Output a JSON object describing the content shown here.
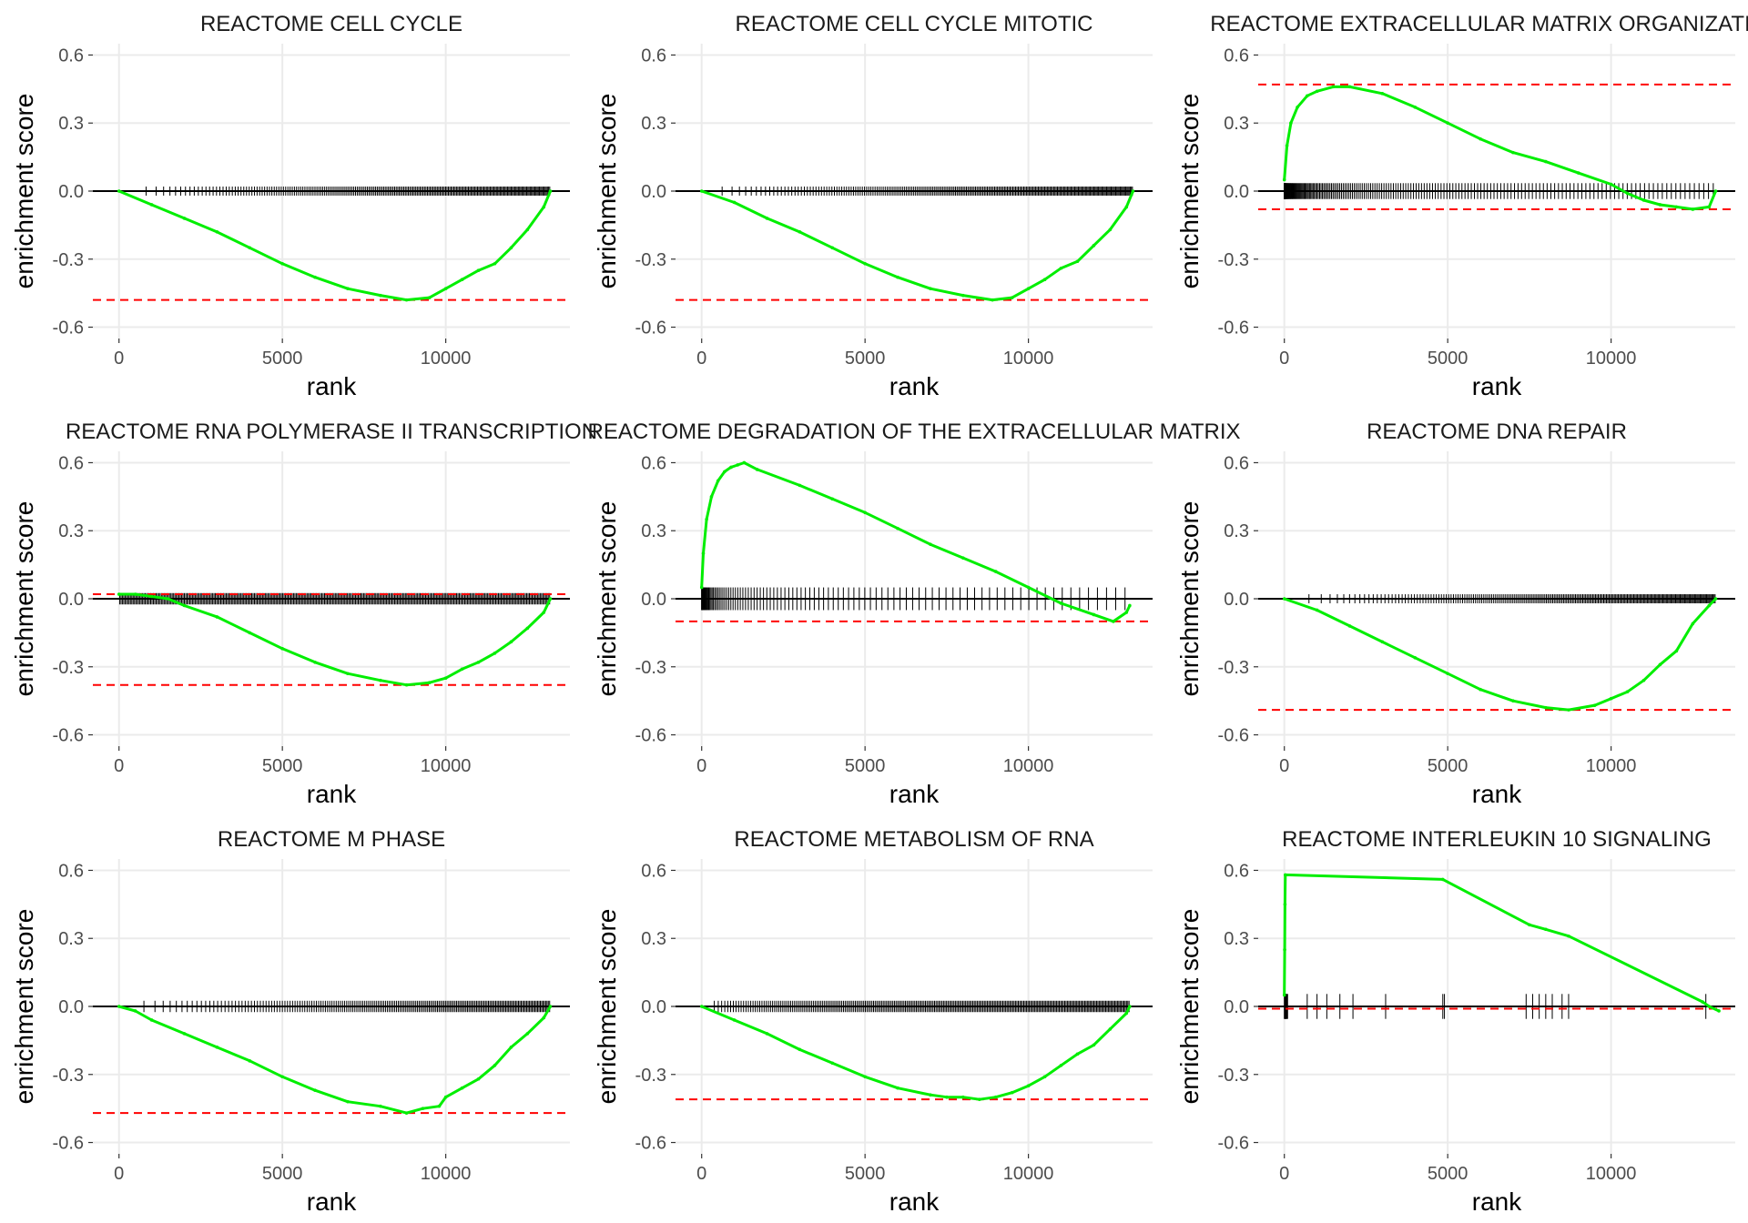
{
  "colors": {
    "curve": "#00ee00",
    "hits": "#000000",
    "es_line": "#ff0000",
    "grid": "#ebebeb"
  },
  "chart_data": [
    {
      "type": "line",
      "title": "REACTOME CELL CYCLE",
      "xlabel": "rank",
      "ylabel": "enrichment score",
      "xlim": [
        -800,
        13800
      ],
      "ylim": [
        -0.65,
        0.65
      ],
      "xticks": [
        0,
        5000,
        10000
      ],
      "xtick_labels": [
        "0",
        "5000",
        "10000"
      ],
      "yticks": [
        0.6,
        0.3,
        0,
        -0.3,
        -0.6
      ],
      "ytick_labels": [
        "0.6",
        "0.3",
        "0.0",
        "-0.3",
        "-0.6"
      ],
      "grid": true,
      "es_lines": [
        -0.48
      ],
      "series": [
        {
          "x": [
            0,
            1000,
            2000,
            3000,
            4000,
            5000,
            6000,
            7000,
            8000,
            8800,
            9500,
            10000,
            10500,
            11000,
            11500,
            12000,
            12500,
            13000,
            13200
          ],
          "y": [
            0,
            -0.06,
            -0.12,
            -0.18,
            -0.25,
            -0.32,
            -0.38,
            -0.43,
            -0.46,
            -0.48,
            -0.47,
            -0.43,
            -0.39,
            -0.35,
            -0.32,
            -0.25,
            -0.17,
            -0.07,
            0
          ]
        }
      ],
      "hits": {
        "start": 500,
        "end": 13200,
        "count": 220,
        "power": 0.6,
        "top": 0.02,
        "bottom": -0.02
      }
    },
    {
      "type": "line",
      "title": "REACTOME CELL CYCLE MITOTIC",
      "xlabel": "rank",
      "ylabel": "enrichment score",
      "xlim": [
        -800,
        13800
      ],
      "ylim": [
        -0.65,
        0.65
      ],
      "xticks": [
        0,
        5000,
        10000
      ],
      "xtick_labels": [
        "0",
        "5000",
        "10000"
      ],
      "yticks": [
        0.6,
        0.3,
        0,
        -0.3,
        -0.6
      ],
      "ytick_labels": [
        "0.6",
        "0.3",
        "0.0",
        "-0.3",
        "-0.6"
      ],
      "grid": true,
      "es_lines": [
        -0.48
      ],
      "series": [
        {
          "x": [
            0,
            1000,
            2000,
            3000,
            4000,
            5000,
            6000,
            7000,
            8000,
            8900,
            9500,
            10000,
            10500,
            11000,
            11500,
            12000,
            12500,
            13000,
            13200
          ],
          "y": [
            0,
            -0.05,
            -0.12,
            -0.18,
            -0.25,
            -0.32,
            -0.38,
            -0.43,
            -0.46,
            -0.48,
            -0.47,
            -0.43,
            -0.39,
            -0.34,
            -0.31,
            -0.24,
            -0.17,
            -0.07,
            0
          ]
        }
      ],
      "hits": {
        "start": 300,
        "end": 13200,
        "count": 230,
        "power": 0.6,
        "top": 0.02,
        "bottom": -0.02
      }
    },
    {
      "type": "line",
      "title": "REACTOME EXTRACELLULAR MATRIX ORGANIZATION",
      "xlabel": "rank",
      "ylabel": "enrichment score",
      "xlim": [
        -800,
        13800
      ],
      "ylim": [
        -0.65,
        0.65
      ],
      "xticks": [
        0,
        5000,
        10000
      ],
      "xtick_labels": [
        "0",
        "5000",
        "10000"
      ],
      "yticks": [
        0.6,
        0.3,
        0,
        -0.3,
        -0.6
      ],
      "ytick_labels": [
        "0.6",
        "0.3",
        "0.0",
        "-0.3",
        "-0.6"
      ],
      "grid": true,
      "es_lines": [
        0.47,
        -0.08
      ],
      "series": [
        {
          "x": [
            0,
            80,
            200,
            400,
            700,
            1000,
            1500,
            2000,
            3000,
            4000,
            5000,
            6000,
            7000,
            8000,
            9000,
            10000,
            10500,
            11000,
            11500,
            12000,
            12500,
            13000,
            13200
          ],
          "y": [
            0.05,
            0.2,
            0.3,
            0.37,
            0.42,
            0.44,
            0.46,
            0.46,
            0.43,
            0.37,
            0.3,
            0.23,
            0.17,
            0.13,
            0.08,
            0.03,
            -0.01,
            -0.04,
            -0.06,
            -0.07,
            -0.08,
            -0.07,
            0
          ]
        }
      ],
      "hits": {
        "start": 0,
        "end": 13200,
        "count": 180,
        "power": 2.0,
        "top": 0.035,
        "bottom": -0.035
      }
    },
    {
      "type": "line",
      "title": "REACTOME RNA POLYMERASE II TRANSCRIPTION",
      "xlabel": "rank",
      "ylabel": "enrichment score",
      "xlim": [
        -800,
        13800
      ],
      "ylim": [
        -0.65,
        0.65
      ],
      "xticks": [
        0,
        5000,
        10000
      ],
      "xtick_labels": [
        "0",
        "5000",
        "10000"
      ],
      "yticks": [
        0.6,
        0.3,
        0,
        -0.3,
        -0.6
      ],
      "ytick_labels": [
        "0.6",
        "0.3",
        "0.0",
        "-0.3",
        "-0.6"
      ],
      "grid": true,
      "es_lines": [
        0.02,
        -0.38
      ],
      "series": [
        {
          "x": [
            0,
            500,
            1000,
            1500,
            2000,
            3000,
            4000,
            5000,
            6000,
            7000,
            8000,
            8800,
            9500,
            10000,
            10500,
            11000,
            11500,
            12000,
            12500,
            13000,
            13200
          ],
          "y": [
            0.02,
            0.02,
            0.01,
            0,
            -0.03,
            -0.08,
            -0.15,
            -0.22,
            -0.28,
            -0.33,
            -0.36,
            -0.38,
            -0.37,
            -0.35,
            -0.31,
            -0.28,
            -0.24,
            -0.19,
            -0.13,
            -0.06,
            0
          ]
        }
      ],
      "hits": {
        "start": 0,
        "end": 13200,
        "count": 320,
        "power": 1.0,
        "top": 0.025,
        "bottom": -0.025
      }
    },
    {
      "type": "line",
      "title": "REACTOME DEGRADATION OF THE EXTRACELLULAR MATRIX",
      "xlabel": "rank",
      "ylabel": "enrichment score",
      "xlim": [
        -800,
        13800
      ],
      "ylim": [
        -0.65,
        0.65
      ],
      "xticks": [
        0,
        5000,
        10000
      ],
      "xtick_labels": [
        "0",
        "5000",
        "10000"
      ],
      "yticks": [
        0.6,
        0.3,
        0,
        -0.3,
        -0.6
      ],
      "ytick_labels": [
        "0.6",
        "0.3",
        "0.0",
        "-0.3",
        "-0.6"
      ],
      "grid": true,
      "es_lines": [
        -0.1
      ],
      "series": [
        {
          "x": [
            0,
            50,
            150,
            300,
            500,
            700,
            900,
            1100,
            1300,
            1700,
            3000,
            4000,
            5000,
            6000,
            7000,
            8000,
            9000,
            10000,
            11000,
            12000,
            12600,
            13000,
            13100
          ],
          "y": [
            0.05,
            0.2,
            0.35,
            0.45,
            0.52,
            0.56,
            0.58,
            0.59,
            0.6,
            0.57,
            0.5,
            0.44,
            0.38,
            0.31,
            0.24,
            0.18,
            0.12,
            0.05,
            -0.02,
            -0.07,
            -0.1,
            -0.06,
            -0.03
          ]
        }
      ],
      "hits": {
        "start": 0,
        "end": 13100,
        "count": 100,
        "power": 2.2,
        "top": 0.05,
        "bottom": -0.05
      }
    },
    {
      "type": "line",
      "title": "REACTOME DNA REPAIR",
      "xlabel": "rank",
      "ylabel": "enrichment score",
      "xlim": [
        -800,
        13800
      ],
      "ylim": [
        -0.65,
        0.65
      ],
      "xticks": [
        0,
        5000,
        10000
      ],
      "xtick_labels": [
        "0",
        "5000",
        "10000"
      ],
      "yticks": [
        0.6,
        0.3,
        0,
        -0.3,
        -0.6
      ],
      "ytick_labels": [
        "0.6",
        "0.3",
        "0.0",
        "-0.3",
        "-0.6"
      ],
      "grid": true,
      "es_lines": [
        -0.49
      ],
      "series": [
        {
          "x": [
            0,
            1000,
            2000,
            3000,
            4000,
            5000,
            6000,
            7000,
            8000,
            8700,
            9500,
            10000,
            10500,
            11000,
            11500,
            12000,
            12500,
            13000,
            13200
          ],
          "y": [
            0,
            -0.05,
            -0.12,
            -0.19,
            -0.26,
            -0.33,
            -0.4,
            -0.45,
            -0.48,
            -0.49,
            -0.47,
            -0.44,
            -0.41,
            -0.36,
            -0.29,
            -0.23,
            -0.11,
            -0.03,
            0
          ]
        }
      ],
      "hits": {
        "start": 300,
        "end": 13200,
        "count": 220,
        "power": 0.55,
        "top": 0.02,
        "bottom": -0.02
      }
    },
    {
      "type": "line",
      "title": "REACTOME M PHASE",
      "xlabel": "rank",
      "ylabel": "enrichment score",
      "xlim": [
        -800,
        13800
      ],
      "ylim": [
        -0.65,
        0.65
      ],
      "xticks": [
        0,
        5000,
        10000
      ],
      "xtick_labels": [
        "0",
        "5000",
        "10000"
      ],
      "yticks": [
        0.6,
        0.3,
        0,
        -0.3,
        -0.6
      ],
      "ytick_labels": [
        "0.6",
        "0.3",
        "0.0",
        "-0.3",
        "-0.6"
      ],
      "grid": true,
      "es_lines": [
        -0.47
      ],
      "series": [
        {
          "x": [
            0,
            500,
            1000,
            2000,
            3000,
            4000,
            5000,
            6000,
            7000,
            8000,
            8800,
            9300,
            9800,
            10000,
            10500,
            11000,
            11500,
            12000,
            12500,
            13000,
            13200
          ],
          "y": [
            0,
            -0.02,
            -0.06,
            -0.12,
            -0.18,
            -0.24,
            -0.31,
            -0.37,
            -0.42,
            -0.44,
            -0.47,
            -0.45,
            -0.44,
            -0.4,
            -0.36,
            -0.32,
            -0.26,
            -0.18,
            -0.12,
            -0.05,
            0
          ]
        }
      ],
      "hits": {
        "start": 400,
        "end": 13200,
        "count": 190,
        "power": 0.6,
        "top": 0.025,
        "bottom": -0.025
      }
    },
    {
      "type": "line",
      "title": "REACTOME METABOLISM OF RNA",
      "xlabel": "rank",
      "ylabel": "enrichment score",
      "xlim": [
        -800,
        13800
      ],
      "ylim": [
        -0.65,
        0.65
      ],
      "xticks": [
        0,
        5000,
        10000
      ],
      "xtick_labels": [
        "0",
        "5000",
        "10000"
      ],
      "yticks": [
        0.6,
        0.3,
        0,
        -0.3,
        -0.6
      ],
      "ytick_labels": [
        "0.6",
        "0.3",
        "0.0",
        "-0.3",
        "-0.6"
      ],
      "grid": true,
      "es_lines": [
        -0.41
      ],
      "series": [
        {
          "x": [
            0,
            1000,
            2000,
            3000,
            4000,
            5000,
            6000,
            7000,
            7500,
            8000,
            8500,
            9000,
            9500,
            10000,
            10500,
            11000,
            11500,
            12000,
            12500,
            13000,
            13100
          ],
          "y": [
            0,
            -0.06,
            -0.12,
            -0.19,
            -0.25,
            -0.31,
            -0.36,
            -0.39,
            -0.4,
            -0.4,
            -0.41,
            -0.4,
            -0.38,
            -0.35,
            -0.31,
            -0.26,
            -0.21,
            -0.17,
            -0.1,
            -0.03,
            0
          ]
        }
      ],
      "hits": {
        "start": 300,
        "end": 13100,
        "count": 260,
        "power": 0.8,
        "top": 0.025,
        "bottom": -0.025
      }
    },
    {
      "type": "line",
      "title": "REACTOME INTERLEUKIN 10 SIGNALING",
      "xlabel": "rank",
      "ylabel": "enrichment score",
      "xlim": [
        -800,
        13800
      ],
      "ylim": [
        -0.65,
        0.65
      ],
      "xticks": [
        0,
        5000,
        10000
      ],
      "xtick_labels": [
        "0",
        "5000",
        "10000"
      ],
      "yticks": [
        0.6,
        0.3,
        0,
        -0.3,
        -0.6
      ],
      "ytick_labels": [
        "0.6",
        "0.3",
        "0.0",
        "-0.3",
        "-0.6"
      ],
      "grid": true,
      "es_lines": [
        -0.01
      ],
      "series": [
        {
          "x": [
            0,
            10,
            20,
            30,
            4850,
            7500,
            8000,
            8700,
            12800,
            13000,
            13300
          ],
          "y": [
            0.05,
            0.25,
            0.45,
            0.58,
            0.56,
            0.36,
            0.34,
            0.31,
            0.02,
            0,
            -0.02
          ]
        }
      ],
      "hits": {
        "list": [
          0,
          10,
          20,
          30,
          40,
          50,
          60,
          80,
          100,
          700,
          1000,
          1300,
          1700,
          2100,
          3100,
          4850,
          4900,
          7400,
          7600,
          7800,
          8000,
          8200,
          8500,
          8700,
          12900
        ],
        "top": 0.055,
        "bottom": -0.055
      }
    }
  ]
}
